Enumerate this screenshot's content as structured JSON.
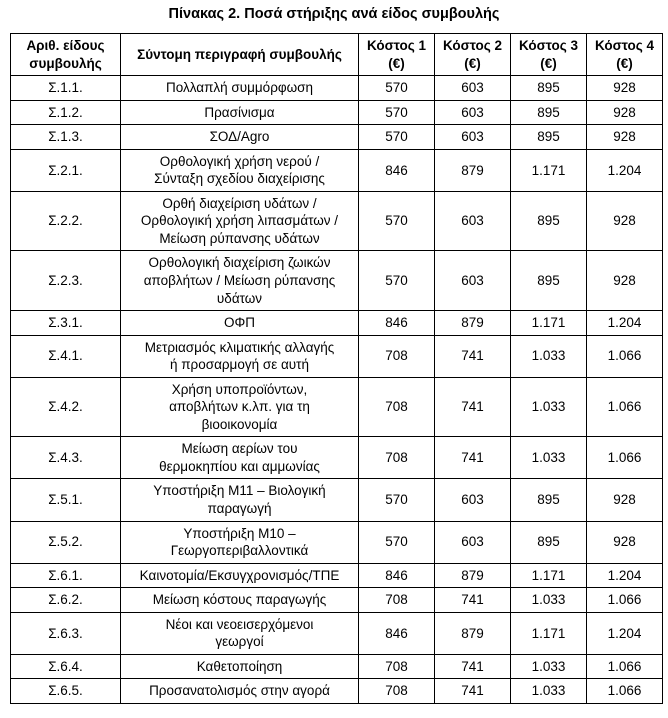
{
  "title": "Πίνακας 2. Ποσά στήριξης ανά είδος συμβουλής",
  "table": {
    "headers": [
      "Αριθ. είδους\nσυμβουλής",
      "Σύντομη περιγραφή συμβουλής",
      "Κόστος 1\n(€)",
      "Κόστος 2\n(€)",
      "Κόστος 3\n(€)",
      "Κόστος 4\n(€)"
    ],
    "rows": [
      {
        "id": "Σ.1.1.",
        "description": "Πολλαπλή συμμόρφωση",
        "costs": [
          "570",
          "603",
          "895",
          "928"
        ]
      },
      {
        "id": "Σ.1.2.",
        "description": "Πρασίνισμα",
        "costs": [
          "570",
          "603",
          "895",
          "928"
        ]
      },
      {
        "id": "Σ.1.3.",
        "description": "ΣΟΔ/Agro",
        "costs": [
          "570",
          "603",
          "895",
          "928"
        ]
      },
      {
        "id": "Σ.2.1.",
        "description": "Ορθολογική χρήση νερού /\nΣύνταξη σχεδίου διαχείρισης",
        "costs": [
          "846",
          "879",
          "1.171",
          "1.204"
        ]
      },
      {
        "id": "Σ.2.2.",
        "description": "Ορθή διαχείριση υδάτων /\nΟρθολογική χρήση λιπασμάτων /\nΜείωση ρύπανσης υδάτων",
        "costs": [
          "570",
          "603",
          "895",
          "928"
        ]
      },
      {
        "id": "Σ.2.3.",
        "description": "Ορθολογική διαχείριση ζωικών\nαποβλήτων / Μείωση ρύπανσης\nυδάτων",
        "costs": [
          "570",
          "603",
          "895",
          "928"
        ]
      },
      {
        "id": "Σ.3.1.",
        "description": "ΟΦΠ",
        "costs": [
          "846",
          "879",
          "1.171",
          "1.204"
        ]
      },
      {
        "id": "Σ.4.1.",
        "description": "Μετριασμός κλιματικής αλλαγής\nή προσαρμογή σε αυτή",
        "costs": [
          "708",
          "741",
          "1.033",
          "1.066"
        ]
      },
      {
        "id": "Σ.4.2.",
        "description": "Χρήση υποπροϊόντων,\nαποβλήτων κ.λπ. για τη\nβιοοικονομία",
        "costs": [
          "708",
          "741",
          "1.033",
          "1.066"
        ]
      },
      {
        "id": "Σ.4.3.",
        "description": "Μείωση αερίων του\nθερμοκηπίου και αμμωνίας",
        "costs": [
          "708",
          "741",
          "1.033",
          "1.066"
        ]
      },
      {
        "id": "Σ.5.1.",
        "description": "Υποστήριξη Μ11 – Βιολογική\nπαραγωγή",
        "costs": [
          "570",
          "603",
          "895",
          "928"
        ]
      },
      {
        "id": "Σ.5.2.",
        "description": "Υποστήριξη Μ10 –\nΓεωργοπεριβαλλοντικά",
        "costs": [
          "570",
          "603",
          "895",
          "928"
        ]
      },
      {
        "id": "Σ.6.1.",
        "description": "Καινοτομία/Εκσυγχρονισμός/ΤΠΕ",
        "costs": [
          "846",
          "879",
          "1.171",
          "1.204"
        ]
      },
      {
        "id": "Σ.6.2.",
        "description": "Μείωση κόστους παραγωγής",
        "costs": [
          "708",
          "741",
          "1.033",
          "1.066"
        ]
      },
      {
        "id": "Σ.6.3.",
        "description": "Νέοι και νεοεισερχόμενοι\nγεωργοί",
        "costs": [
          "846",
          "879",
          "1.171",
          "1.204"
        ]
      },
      {
        "id": "Σ.6.4.",
        "description": "Καθετοποίηση",
        "costs": [
          "708",
          "741",
          "1.033",
          "1.066"
        ]
      },
      {
        "id": "Σ.6.5.",
        "description": "Προσανατολισμός στην αγορά",
        "costs": [
          "708",
          "741",
          "1.033",
          "1.066"
        ]
      }
    ]
  }
}
